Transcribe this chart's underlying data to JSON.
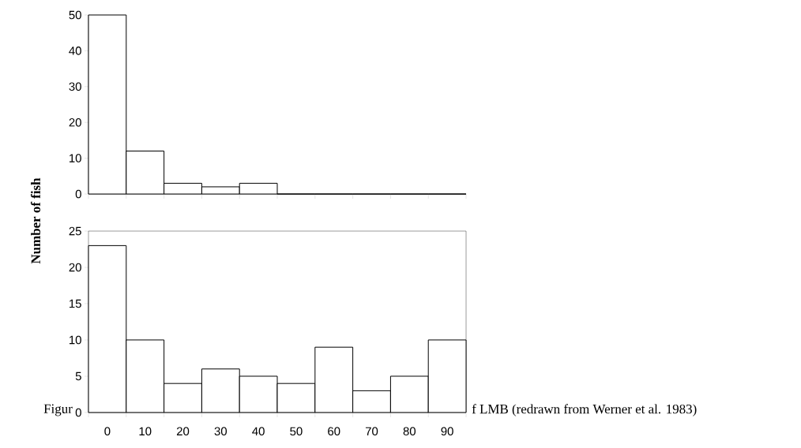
{
  "chart_data": [
    {
      "type": "bar",
      "ylabel": "Number of fish",
      "categories": [
        "0",
        "10",
        "20",
        "30",
        "40",
        "50",
        "60",
        "70",
        "80",
        "90"
      ],
      "values": [
        50,
        12,
        3,
        2,
        3,
        0,
        0,
        0,
        0,
        0
      ],
      "color": "#ffffff",
      "ylim": [
        0,
        50
      ],
      "yticks": [
        0,
        10,
        20,
        30,
        40,
        50
      ],
      "tick_labels": "y"
    },
    {
      "type": "bar",
      "categories": [
        "0",
        "10",
        "20",
        "30",
        "40",
        "50",
        "60",
        "70",
        "80",
        "90"
      ],
      "values": [
        23,
        10,
        4,
        6,
        5,
        4,
        9,
        3,
        5,
        10
      ],
      "color": "#ffffff",
      "ylim": [
        0,
        25
      ],
      "yticks": [
        0,
        5,
        10,
        15,
        20,
        25
      ],
      "annotations": [
        "Figur",
        "f LMB (redrawn from Werner et al. 1983)"
      ]
    }
  ]
}
